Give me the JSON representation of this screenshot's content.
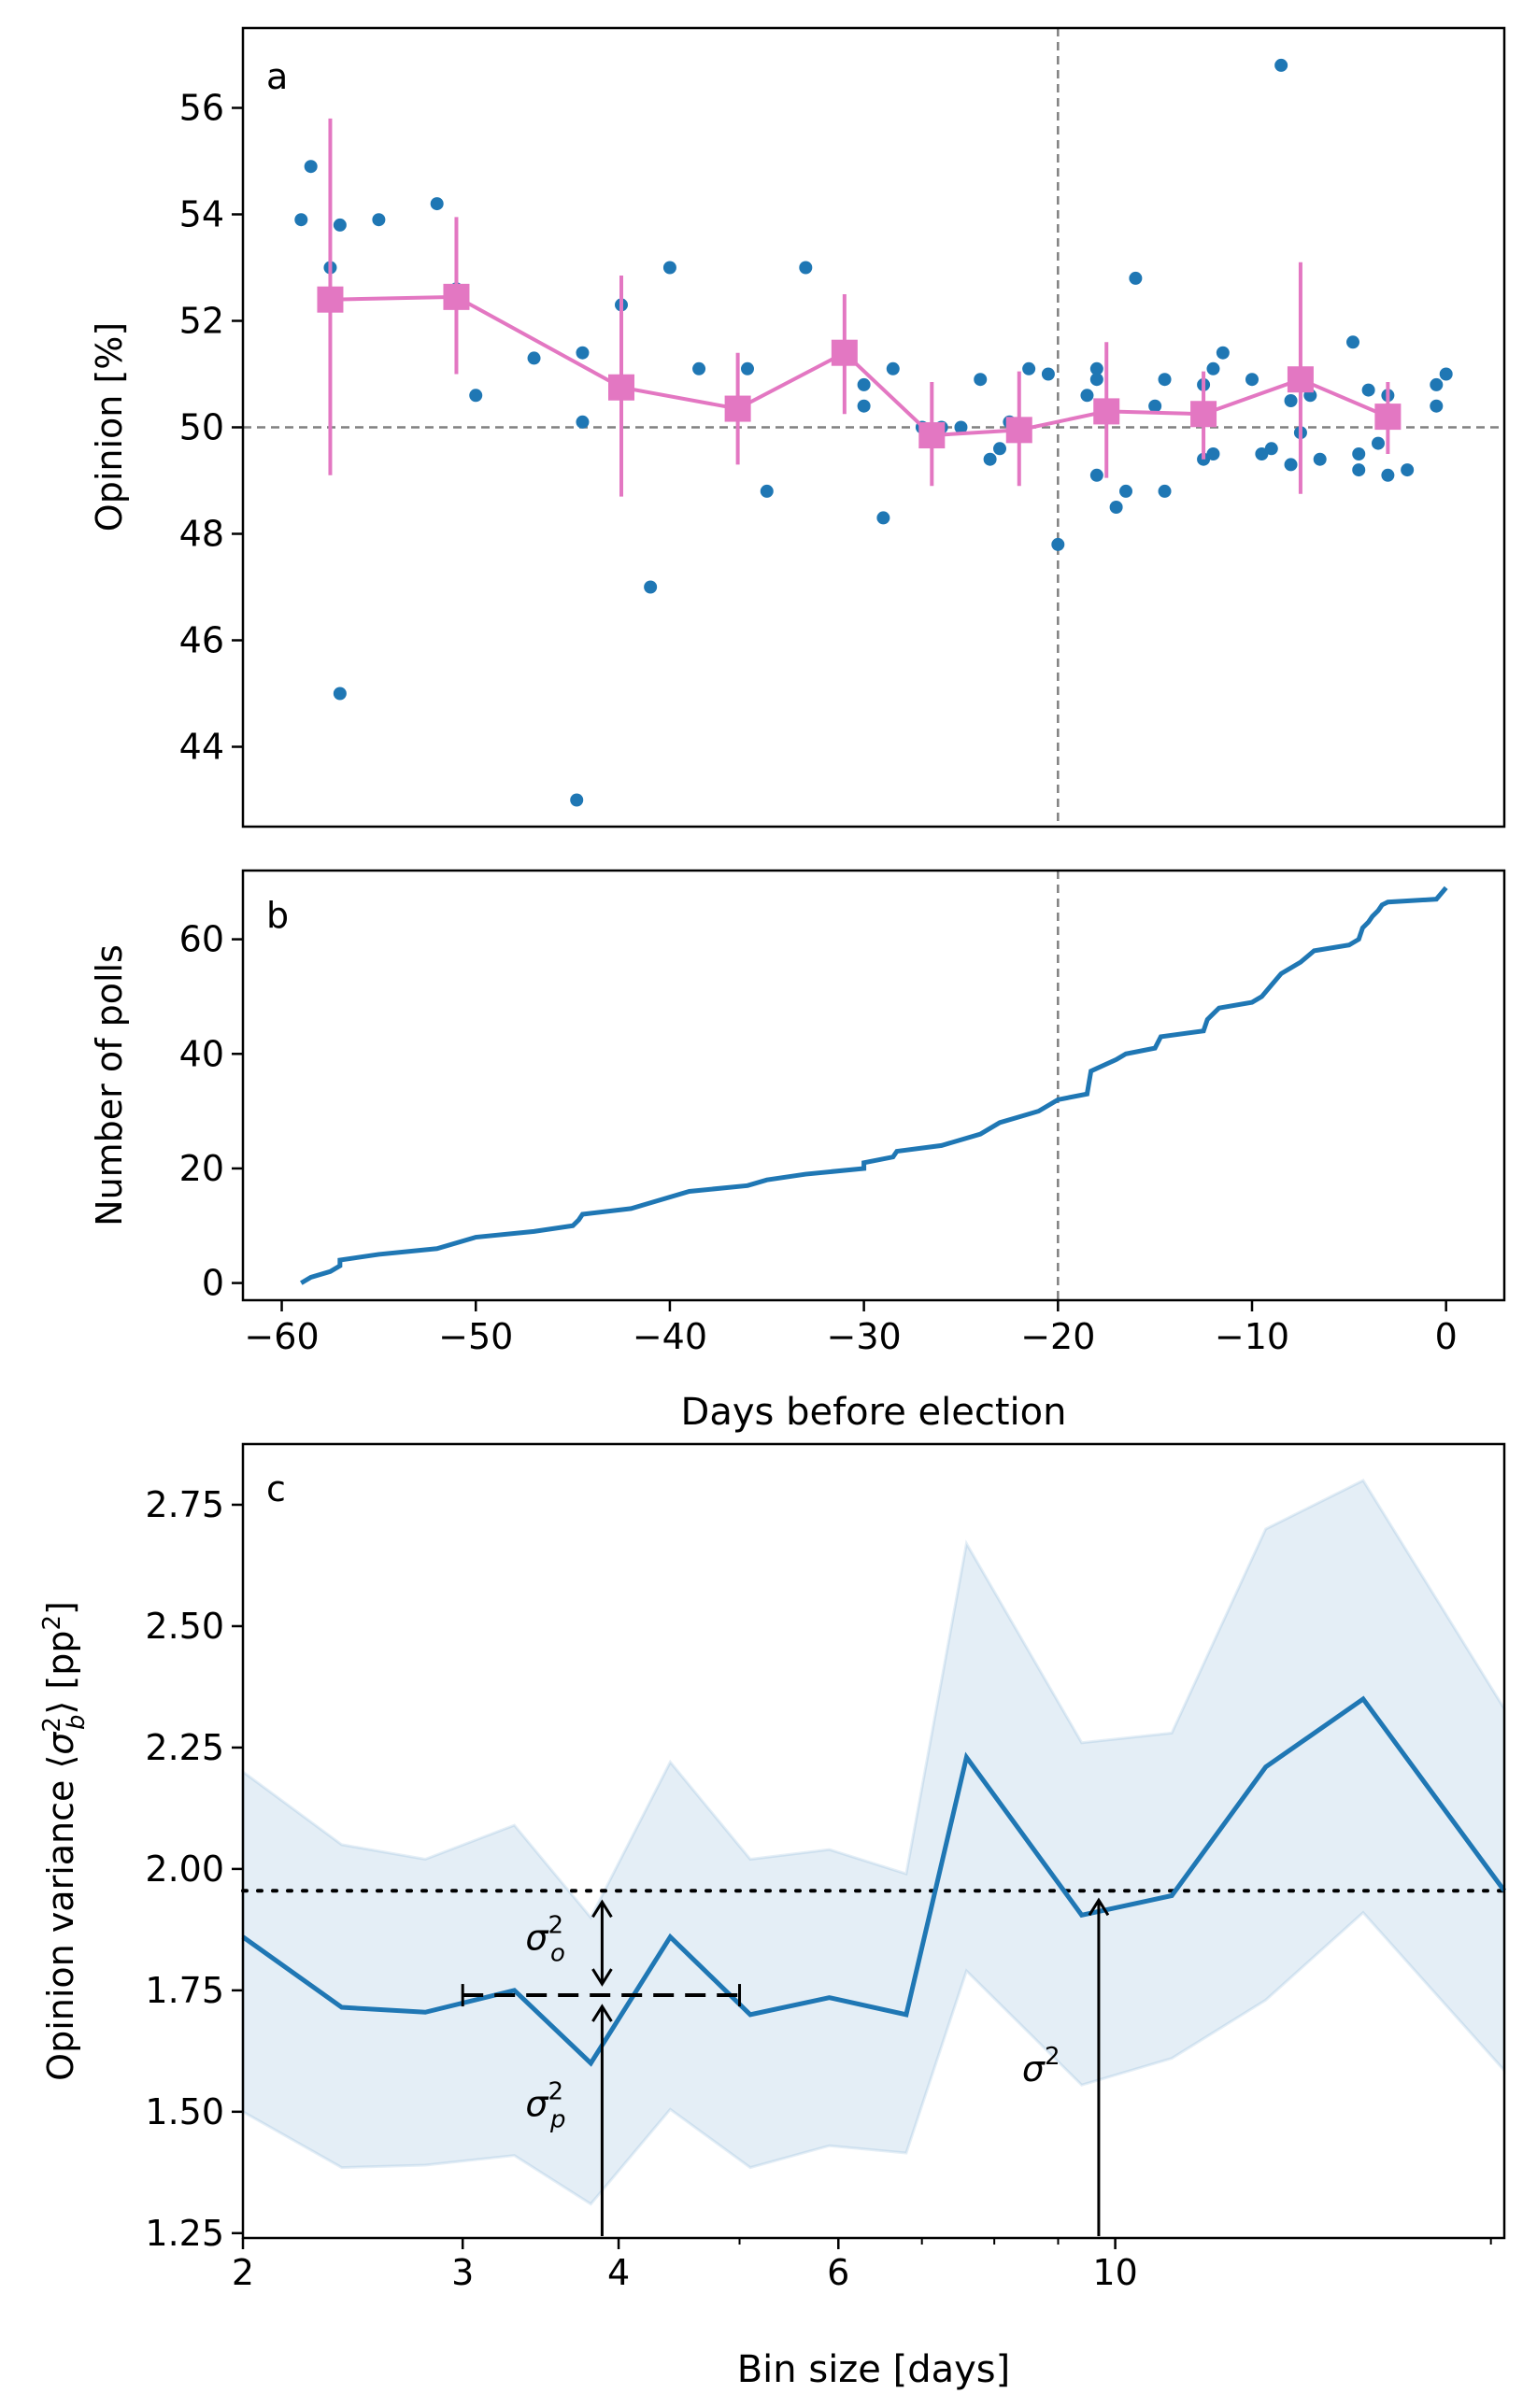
{
  "colors": {
    "scatter": "#1f77b4",
    "binned": "#e377c2",
    "line": "#1f77b4",
    "band": "#1f77b4",
    "guide": "#808080"
  },
  "chart_data": [
    {
      "panel": "a",
      "type": "scatter",
      "ylabel": "Opinion [%]",
      "xlim": [
        -62,
        3
      ],
      "ylim": [
        42.5,
        57.5
      ],
      "yticks": [
        {
          "value": 44,
          "label": "44"
        },
        {
          "value": 46,
          "label": "46"
        },
        {
          "value": 48,
          "label": "48"
        },
        {
          "value": 50,
          "label": "50"
        },
        {
          "value": 52,
          "label": "52"
        },
        {
          "value": 54,
          "label": "54"
        },
        {
          "value": 56,
          "label": "56"
        }
      ],
      "hline": 50,
      "vline": -20,
      "polls": [
        [
          -59.0,
          53.9
        ],
        [
          -58.5,
          54.9
        ],
        [
          -57.5,
          53.0
        ],
        [
          -57.0,
          53.8
        ],
        [
          -57.0,
          45.0
        ],
        [
          -55.0,
          53.9
        ],
        [
          -52.0,
          54.2
        ],
        [
          -51.0,
          52.6
        ],
        [
          -50.0,
          50.6
        ],
        [
          -47.0,
          51.3
        ],
        [
          -44.8,
          43.0
        ],
        [
          -44.5,
          51.4
        ],
        [
          -44.5,
          50.1
        ],
        [
          -42.5,
          52.3
        ],
        [
          -41.0,
          47.0
        ],
        [
          -40.0,
          53.0
        ],
        [
          -38.5,
          51.1
        ],
        [
          -36.0,
          51.1
        ],
        [
          -35.0,
          48.8
        ],
        [
          -33.0,
          53.0
        ],
        [
          -30.0,
          50.8
        ],
        [
          -30.0,
          50.4
        ],
        [
          -29.0,
          48.3
        ],
        [
          -28.5,
          51.1
        ],
        [
          -27.0,
          50.0
        ],
        [
          -26.0,
          50.0
        ],
        [
          -25.0,
          50.0
        ],
        [
          -24.0,
          50.9
        ],
        [
          -23.5,
          49.4
        ],
        [
          -23.0,
          49.6
        ],
        [
          -22.5,
          50.1
        ],
        [
          -21.5,
          51.1
        ],
        [
          -20.5,
          51.0
        ],
        [
          -20.0,
          47.8
        ],
        [
          -18.5,
          50.6
        ],
        [
          -18.0,
          50.9
        ],
        [
          -18.0,
          51.1
        ],
        [
          -18.0,
          49.1
        ],
        [
          -17.0,
          48.5
        ],
        [
          -16.5,
          48.8
        ],
        [
          -16.0,
          52.8
        ],
        [
          -15.0,
          50.4
        ],
        [
          -14.5,
          50.9
        ],
        [
          -14.5,
          48.8
        ],
        [
          -12.5,
          50.8
        ],
        [
          -12.5,
          49.4
        ],
        [
          -12.0,
          51.1
        ],
        [
          -12.0,
          49.5
        ],
        [
          -11.5,
          51.4
        ],
        [
          -10.0,
          50.9
        ],
        [
          -9.5,
          49.5
        ],
        [
          -9.0,
          49.6
        ],
        [
          -8.5,
          56.8
        ],
        [
          -8.0,
          50.5
        ],
        [
          -8.0,
          49.3
        ],
        [
          -7.5,
          49.9
        ],
        [
          -7.0,
          50.6
        ],
        [
          -6.5,
          49.4
        ],
        [
          -4.8,
          51.6
        ],
        [
          -4.5,
          49.5
        ],
        [
          -4.0,
          50.7
        ],
        [
          -3.5,
          49.7
        ],
        [
          -3.0,
          50.6
        ],
        [
          -3.0,
          49.1
        ],
        [
          -2.0,
          49.2
        ],
        [
          -0.5,
          50.8
        ],
        [
          -0.5,
          50.4
        ],
        [
          0.0,
          51.0
        ],
        [
          -4.5,
          49.2
        ]
      ],
      "binned": [
        {
          "x": -57.5,
          "y": 52.4,
          "lo": 49.1,
          "hi": 55.8
        },
        {
          "x": -51.0,
          "y": 52.45,
          "lo": 51.0,
          "hi": 53.95
        },
        {
          "x": -42.5,
          "y": 50.75,
          "lo": 48.7,
          "hi": 52.85
        },
        {
          "x": -36.5,
          "y": 50.35,
          "lo": 49.3,
          "hi": 51.4
        },
        {
          "x": -31.0,
          "y": 51.4,
          "lo": 50.25,
          "hi": 52.5
        },
        {
          "x": -26.5,
          "y": 49.85,
          "lo": 48.9,
          "hi": 50.85
        },
        {
          "x": -22.0,
          "y": 49.95,
          "lo": 48.9,
          "hi": 51.05
        },
        {
          "x": -17.5,
          "y": 50.3,
          "lo": 49.05,
          "hi": 51.6
        },
        {
          "x": -12.5,
          "y": 50.25,
          "lo": 49.4,
          "hi": 51.05
        },
        {
          "x": -7.5,
          "y": 50.9,
          "lo": 48.75,
          "hi": 53.1
        },
        {
          "x": -3.0,
          "y": 50.2,
          "lo": 49.5,
          "hi": 50.85
        }
      ]
    },
    {
      "panel": "b",
      "type": "line",
      "ylabel": "Number of polls",
      "xlabel": "Days before election",
      "xlim": [
        -62,
        3
      ],
      "ylim": [
        -3,
        72
      ],
      "yticks": [
        {
          "value": 0,
          "label": "0"
        },
        {
          "value": 20,
          "label": "20"
        },
        {
          "value": 40,
          "label": "40"
        },
        {
          "value": 60,
          "label": "60"
        }
      ],
      "xticks": [
        {
          "value": -60,
          "label": "−60"
        },
        {
          "value": -50,
          "label": "−50"
        },
        {
          "value": -40,
          "label": "−40"
        },
        {
          "value": -30,
          "label": "−30"
        },
        {
          "value": -20,
          "label": "−20"
        },
        {
          "value": -10,
          "label": "−10"
        },
        {
          "value": 0,
          "label": "0"
        }
      ],
      "vline": -20,
      "x": [
        -59,
        -58.5,
        -57.5,
        -57,
        -57,
        -55,
        -52,
        -50,
        -47,
        -45,
        -44.7,
        -44.5,
        -42,
        -41,
        -39,
        -36,
        -35,
        -33,
        -30,
        -30,
        -28.5,
        -28.3,
        -26,
        -24,
        -23,
        -22,
        -21,
        -20,
        -18.5,
        -18.3,
        -17,
        -16.5,
        -15,
        -14.7,
        -12.5,
        -12.3,
        -12,
        -11.7,
        -10,
        -9.5,
        -9,
        -8.5,
        -8,
        -7.5,
        -6.8,
        -5,
        -4.5,
        -4.3,
        -4,
        -3.8,
        -3.5,
        -3.3,
        -3,
        -0.5,
        0
      ],
      "y": [
        0,
        1,
        2,
        3,
        4,
        5,
        6,
        8,
        9,
        10,
        11,
        12,
        13,
        14,
        16,
        17,
        18,
        19,
        20,
        21,
        22,
        23,
        24,
        26,
        28,
        29,
        30,
        32,
        33,
        37,
        39,
        40,
        41,
        43,
        44,
        46,
        47,
        48,
        49,
        50,
        52,
        54,
        55,
        56,
        58,
        59,
        60,
        62,
        63,
        64,
        65,
        66,
        66.5,
        67,
        69
      ]
    },
    {
      "panel": "c",
      "type": "line",
      "ylabel": "Opinion variance ⟨σ_b²⟩ [pp²]",
      "xlabel": "Bin size [days]",
      "xscale": "log",
      "xlim": [
        2,
        20.5
      ],
      "ylim": [
        1.24,
        2.875
      ],
      "yticks": [
        {
          "value": 1.25,
          "label": "1.25"
        },
        {
          "value": 1.5,
          "label": "1.50"
        },
        {
          "value": 1.75,
          "label": "1.75"
        },
        {
          "value": 2.0,
          "label": "2.00"
        },
        {
          "value": 2.25,
          "label": "2.25"
        },
        {
          "value": 2.5,
          "label": "2.50"
        },
        {
          "value": 2.75,
          "label": "2.75"
        }
      ],
      "xticks": [
        {
          "value": 2,
          "label": "2"
        },
        {
          "value": 3,
          "label": "3"
        },
        {
          "value": 4,
          "label": "4"
        },
        {
          "value": 6,
          "label": "6"
        },
        {
          "value": 10,
          "label": "10"
        }
      ],
      "xminor": [
        5,
        7,
        8,
        9,
        20
      ],
      "x": [
        2.0,
        2.4,
        2.8,
        3.3,
        3.8,
        4.4,
        5.1,
        5.9,
        6.8,
        7.6,
        9.4,
        11.1,
        13.2,
        15.8,
        20.5
      ],
      "mean": [
        1.86,
        1.715,
        1.705,
        1.75,
        1.6,
        1.86,
        1.7,
        1.735,
        1.7,
        2.23,
        1.905,
        1.945,
        2.21,
        2.35,
        1.955
      ],
      "upper": [
        2.2,
        2.05,
        2.02,
        2.09,
        1.9,
        2.22,
        2.02,
        2.04,
        1.99,
        2.67,
        2.26,
        2.28,
        2.7,
        2.8,
        2.33
      ],
      "lower": [
        1.5,
        1.385,
        1.39,
        1.41,
        1.31,
        1.505,
        1.385,
        1.43,
        1.415,
        1.79,
        1.555,
        1.61,
        1.73,
        1.91,
        1.585
      ],
      "sigma2_level": 1.955,
      "pollster_level": 1.74,
      "pollster_x_range": [
        3.0,
        5.0
      ],
      "annotations": {
        "sigma_o": {
          "base": "σ",
          "sub": "o",
          "sup": "2"
        },
        "sigma_p": {
          "base": "σ",
          "sub": "p",
          "sup": "2"
        },
        "sigma": {
          "base": "σ",
          "sup": "2"
        }
      }
    }
  ],
  "panel_letters": [
    "a",
    "b",
    "c"
  ]
}
